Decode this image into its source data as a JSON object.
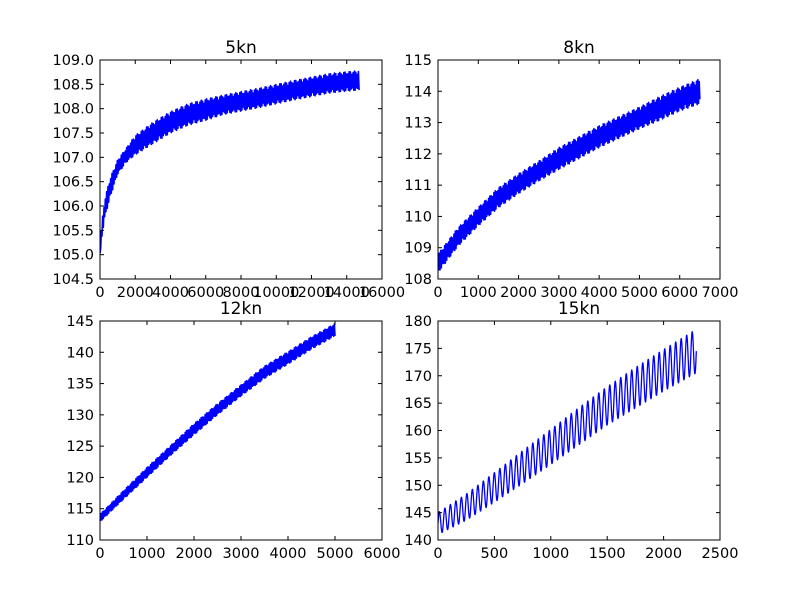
{
  "chart_data": [
    {
      "type": "line",
      "title": "5kn",
      "xlabel": "",
      "ylabel": "",
      "xlim": [
        0,
        16000
      ],
      "ylim": [
        104.5,
        109.0
      ],
      "xticks": [
        0,
        2000,
        4000,
        6000,
        8000,
        10000,
        12000,
        14000,
        16000
      ],
      "xtick_labels": [
        "0",
        "2000",
        "4000",
        "6000",
        "8000",
        "10000",
        "12000",
        "14000",
        "16000"
      ],
      "yticks": [
        104.5,
        105.0,
        105.5,
        106.0,
        106.5,
        107.0,
        107.5,
        108.0,
        108.5,
        109.0
      ],
      "ytick_labels": [
        "104.5",
        "105.0",
        "105.5",
        "106.0",
        "106.5",
        "107.0",
        "107.5",
        "108.0",
        "108.5",
        "109.0"
      ],
      "grid": false,
      "color": "#0000ff",
      "series": [
        {
          "x": [
            0,
            100,
            300,
            600,
            1000,
            1500,
            2000,
            3000,
            4000,
            5000,
            6000,
            7000,
            8000,
            9000,
            10000,
            11000,
            12000,
            13000,
            14000,
            14700
          ],
          "y": [
            105.0,
            105.5,
            106.0,
            106.4,
            106.8,
            107.05,
            107.25,
            107.5,
            107.72,
            107.88,
            107.98,
            108.08,
            108.15,
            108.22,
            108.3,
            108.38,
            108.45,
            108.52,
            108.56,
            108.58
          ],
          "amplitude": [
            0.05,
            0.15,
            0.2,
            0.2,
            0.15,
            0.15,
            0.2,
            0.22,
            0.22,
            0.22,
            0.22,
            0.2,
            0.2,
            0.2,
            0.2,
            0.2,
            0.2,
            0.2,
            0.2,
            0.2
          ]
        }
      ]
    },
    {
      "type": "line",
      "title": "8kn",
      "xlabel": "",
      "ylabel": "",
      "xlim": [
        0,
        7000
      ],
      "ylim": [
        108,
        115
      ],
      "xticks": [
        0,
        1000,
        2000,
        3000,
        4000,
        5000,
        6000,
        7000
      ],
      "xtick_labels": [
        "0",
        "1000",
        "2000",
        "3000",
        "4000",
        "5000",
        "6000",
        "7000"
      ],
      "yticks": [
        108,
        109,
        110,
        111,
        112,
        113,
        114,
        115
      ],
      "ytick_labels": [
        "108",
        "109",
        "110",
        "111",
        "112",
        "113",
        "114",
        "115"
      ],
      "grid": false,
      "color": "#0000ff",
      "series": [
        {
          "x": [
            0,
            500,
            1000,
            1500,
            2000,
            2500,
            3000,
            3500,
            4000,
            4500,
            5000,
            5500,
            6000,
            6500
          ],
          "y": [
            108.5,
            109.35,
            110.0,
            110.6,
            111.05,
            111.45,
            111.85,
            112.2,
            112.55,
            112.85,
            113.15,
            113.45,
            113.75,
            114.0
          ],
          "amplitude": [
            0.3,
            0.3,
            0.3,
            0.32,
            0.32,
            0.32,
            0.35,
            0.35,
            0.35,
            0.35,
            0.35,
            0.38,
            0.38,
            0.4
          ]
        }
      ]
    },
    {
      "type": "line",
      "title": "12kn",
      "xlabel": "",
      "ylabel": "",
      "xlim": [
        0,
        6000
      ],
      "ylim": [
        110,
        145
      ],
      "xticks": [
        0,
        1000,
        2000,
        3000,
        4000,
        5000,
        6000
      ],
      "xtick_labels": [
        "0",
        "1000",
        "2000",
        "3000",
        "4000",
        "5000",
        "6000"
      ],
      "yticks": [
        110,
        115,
        120,
        125,
        130,
        135,
        140,
        145
      ],
      "ytick_labels": [
        "110",
        "115",
        "120",
        "125",
        "130",
        "135",
        "140",
        "145"
      ],
      "grid": false,
      "color": "#0000ff",
      "series": [
        {
          "x": [
            0,
            500,
            1000,
            1500,
            2000,
            2500,
            3000,
            3500,
            4000,
            4500,
            5000
          ],
          "y": [
            113.5,
            117.2,
            120.8,
            124.3,
            127.7,
            130.9,
            133.9,
            136.8,
            139.1,
            141.5,
            143.6
          ],
          "amplitude": [
            0.6,
            0.7,
            0.8,
            0.8,
            0.9,
            0.9,
            0.9,
            1.0,
            1.0,
            1.0,
            1.0
          ]
        }
      ]
    },
    {
      "type": "line",
      "title": "15kn",
      "xlabel": "",
      "ylabel": "",
      "xlim": [
        0,
        2500
      ],
      "ylim": [
        140,
        180
      ],
      "xticks": [
        0,
        500,
        1000,
        1500,
        2000,
        2500
      ],
      "xtick_labels": [
        "0",
        "500",
        "1000",
        "1500",
        "2000",
        "2500"
      ],
      "yticks": [
        140,
        145,
        150,
        155,
        160,
        165,
        170,
        175,
        180
      ],
      "ytick_labels": [
        "140",
        "145",
        "150",
        "155",
        "160",
        "165",
        "170",
        "175",
        "180"
      ],
      "grid": false,
      "color": "#0000ff",
      "series": [
        {
          "x": [
            0,
            250,
            500,
            750,
            1000,
            1250,
            1500,
            1750,
            2000,
            2290
          ],
          "y": [
            143.0,
            146.0,
            149.6,
            153.3,
            157.0,
            160.8,
            164.5,
            167.8,
            171.0,
            174.5
          ],
          "amplitude": [
            2.0,
            2.4,
            2.7,
            3.0,
            3.2,
            3.4,
            3.5,
            3.7,
            3.8,
            4.0
          ],
          "cycles": 47
        }
      ]
    }
  ]
}
